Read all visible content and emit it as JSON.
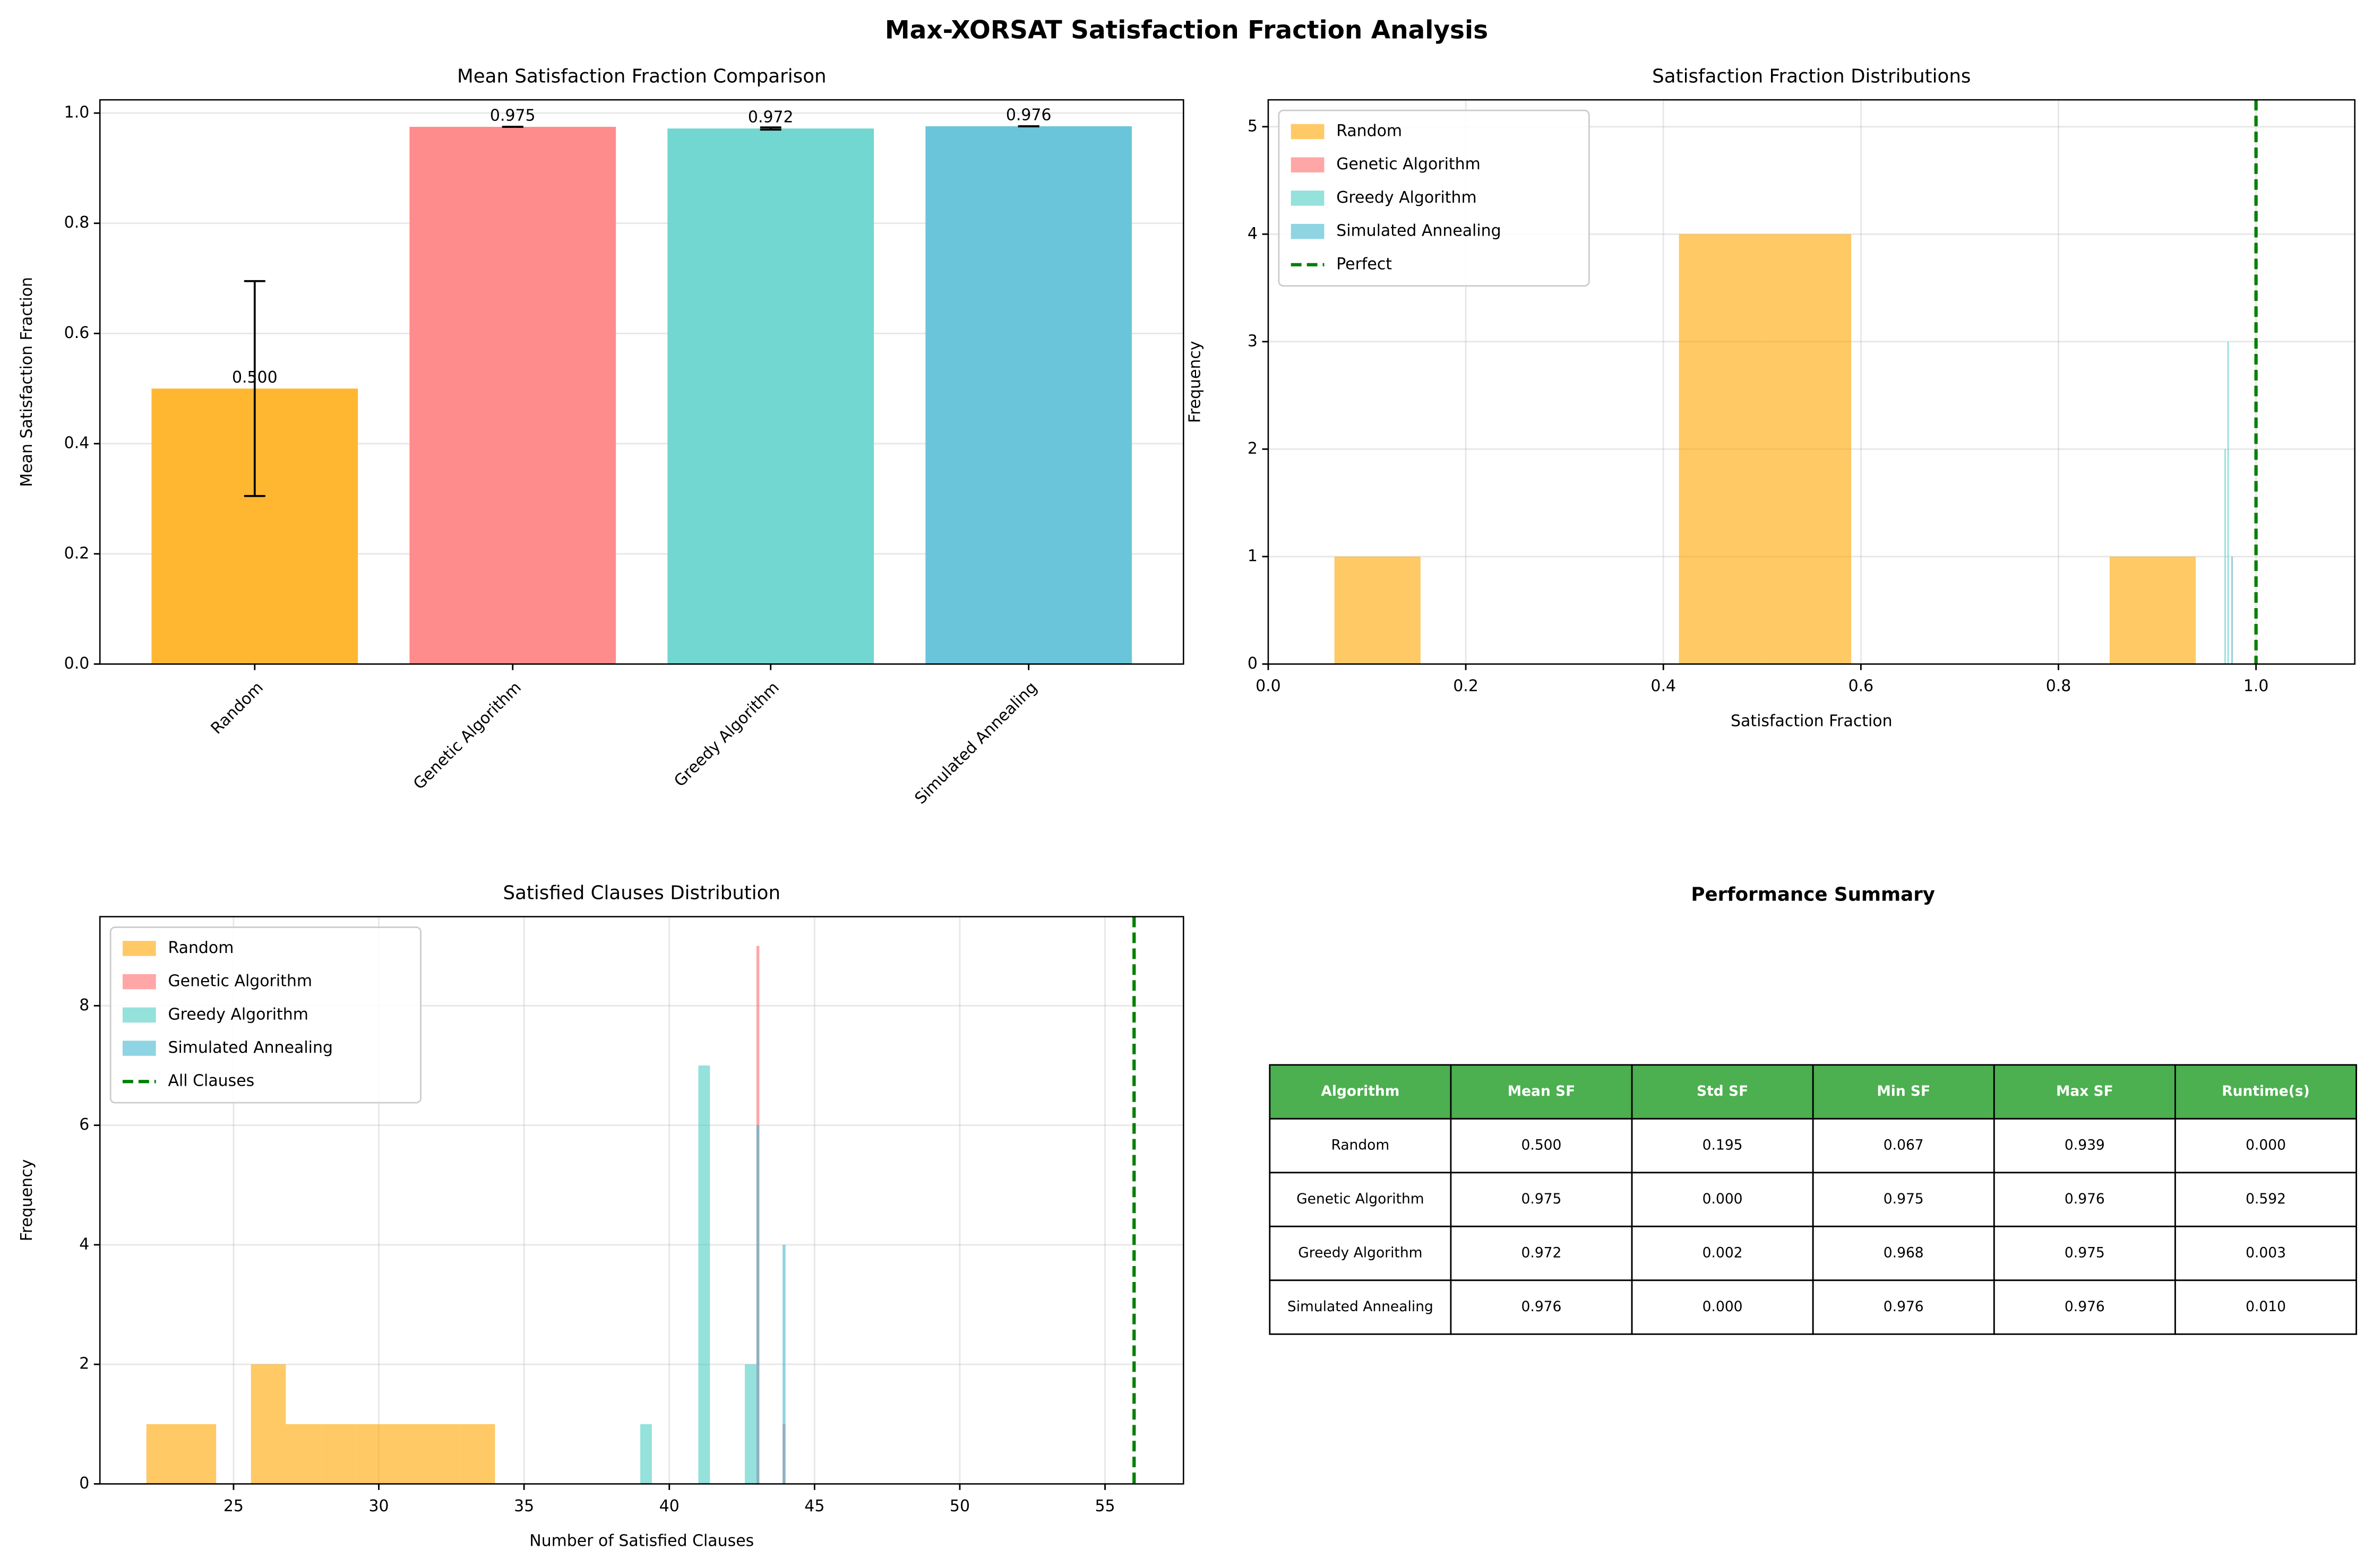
{
  "title": "Max-XORSAT Satisfaction Fraction Analysis",
  "chart_data": [
    {
      "type": "bar",
      "title": "Mean Satisfaction Fraction Comparison",
      "y_label": "Mean Satisfaction Fraction",
      "categories": [
        "Random",
        "Genetic Algorithm",
        "Greedy Algorithm",
        "Simulated Annealing"
      ],
      "values": [
        0.5,
        0.975,
        0.972,
        0.976
      ],
      "value_labels": [
        "0.500",
        "0.975",
        "0.972",
        "0.976"
      ],
      "errors": [
        0.195,
        0.0,
        0.002,
        0.0
      ],
      "colors": [
        "#ffb732",
        "#ff8c8c",
        "#72d7d0",
        "#6ac5da"
      ],
      "ylim": [
        0,
        1.024
      ],
      "yticks": [
        {
          "value": 0,
          "label": "0.0"
        },
        0.2,
        0.4,
        0.6,
        0.8,
        {
          "value": 1,
          "label": "1.0"
        }
      ],
      "grid": true
    },
    {
      "type": "histogram",
      "title": "Satisfaction Fraction Distributions",
      "x_label": "Satisfaction Fraction",
      "y_label": "Frequency",
      "series": [
        {
          "name": "Random",
          "color": "#ffa500",
          "bins": [
            0.067,
            0.1542,
            0.2414,
            0.3286,
            0.4158,
            0.503,
            0.5902,
            0.6774,
            0.7646,
            0.8518,
            0.939
          ],
          "values": [
            1,
            0,
            0,
            0,
            4,
            4,
            0,
            0,
            0,
            1
          ]
        },
        {
          "name": "Genetic Algorithm",
          "color": "#ff6b6b",
          "bins": [
            0.975,
            0.9755,
            0.976
          ],
          "values": [
            1,
            0
          ]
        },
        {
          "name": "Greedy Algorithm",
          "color": "#4ecdc4",
          "bins": [
            0.968,
            0.9695,
            0.971,
            0.9725,
            0.974
          ],
          "values": [
            2,
            0,
            3,
            0
          ]
        },
        {
          "name": "Simulated Annealing",
          "color": "#45b7d1",
          "bins": [
            0.9755,
            0.9765
          ],
          "values": [
            1
          ]
        }
      ],
      "reference_line": {
        "name": "Perfect",
        "value": 1.0,
        "color": "#008000"
      },
      "xlim": [
        0,
        1.1
      ],
      "xticks": [
        {
          "value": 0,
          "label": "0.0"
        },
        0.2,
        0.4,
        0.6,
        0.8,
        {
          "value": 1,
          "label": "1.0"
        }
      ],
      "ylim": [
        0,
        5.25
      ],
      "yticks": [
        0,
        1,
        2,
        3,
        4,
        5
      ],
      "legend": "upper left",
      "grid": true
    },
    {
      "type": "histogram",
      "title": "Satisfied Clauses Distribution",
      "x_label": "Number of Satisfied Clauses",
      "y_label": "Frequency",
      "series": [
        {
          "name": "Random",
          "color": "#ffa500",
          "bins": [
            22,
            23.2,
            24.4,
            25.6,
            26.8,
            28,
            29.2,
            30.4,
            31.6,
            32.8,
            34
          ],
          "values": [
            1,
            1,
            0,
            2,
            1,
            1,
            1,
            1,
            1,
            1
          ]
        },
        {
          "name": "Genetic Algorithm",
          "color": "#ff6b6b",
          "bins": [
            43,
            43.1,
            43.2,
            43.3,
            43.4,
            43.5,
            43.6,
            43.7,
            43.8,
            43.9,
            44
          ],
          "values": [
            9,
            0,
            0,
            0,
            0,
            0,
            0,
            0,
            0,
            1
          ]
        },
        {
          "name": "Greedy Algorithm",
          "color": "#4ecdc4",
          "bins": [
            39,
            39.4,
            39.8,
            40.2,
            40.6,
            41,
            41.4,
            41.8,
            42.2,
            42.6,
            43
          ],
          "values": [
            1,
            0,
            0,
            0,
            0,
            7,
            0,
            0,
            0,
            2
          ]
        },
        {
          "name": "Simulated Annealing",
          "color": "#45b7d1",
          "bins": [
            43,
            43.1,
            43.2,
            43.3,
            43.4,
            43.5,
            43.6,
            43.7,
            43.8,
            43.9,
            44
          ],
          "values": [
            6,
            0,
            0,
            0,
            0,
            0,
            0,
            0,
            0,
            4
          ]
        }
      ],
      "reference_line": {
        "name": "All Clauses",
        "value": 56,
        "color": "#008000"
      },
      "xlim": [
        20.4,
        57.7
      ],
      "xticks": [
        25,
        30,
        35,
        40,
        45,
        50,
        55
      ],
      "ylim": [
        0,
        9.49
      ],
      "yticks": [
        0,
        2,
        4,
        6,
        8
      ],
      "legend": "upper left",
      "grid": true
    },
    {
      "type": "table",
      "title": "Performance Summary",
      "header_color": "#4caf50",
      "columns": [
        "Algorithm",
        "Mean SF",
        "Std SF",
        "Min SF",
        "Max SF",
        "Runtime(s)"
      ],
      "rows": [
        [
          "Random",
          "0.500",
          "0.195",
          "0.067",
          "0.939",
          "0.000"
        ],
        [
          "Genetic Algorithm",
          "0.975",
          "0.000",
          "0.975",
          "0.976",
          "0.592"
        ],
        [
          "Greedy Algorithm",
          "0.972",
          "0.002",
          "0.968",
          "0.975",
          "0.003"
        ],
        [
          "Simulated Annealing",
          "0.976",
          "0.000",
          "0.976",
          "0.976",
          "0.010"
        ]
      ]
    }
  ]
}
